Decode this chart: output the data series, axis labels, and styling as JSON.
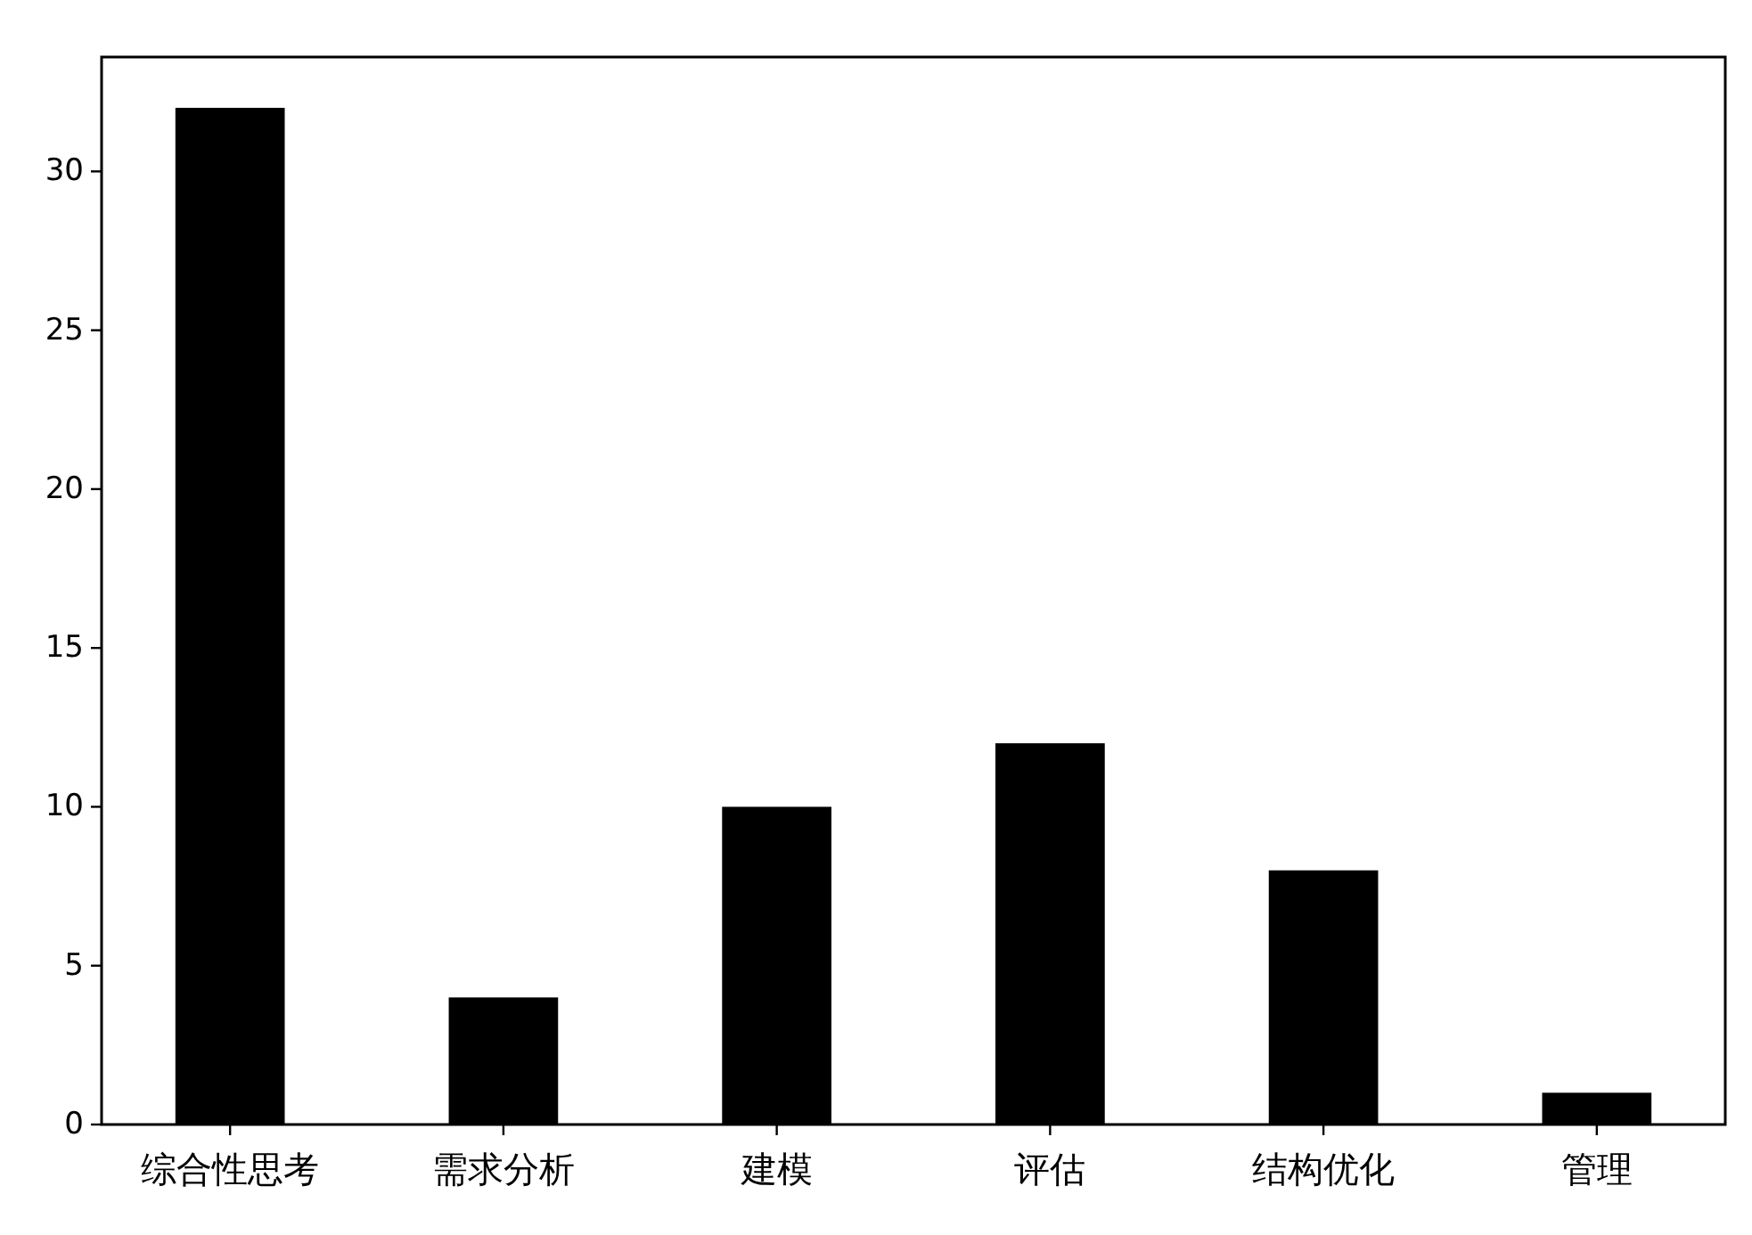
{
  "chart_data": {
    "type": "bar",
    "categories": [
      "综合性思考",
      "需求分析",
      "建模",
      "评估",
      "结构优化",
      "管理"
    ],
    "values": [
      32,
      4,
      10,
      12,
      8,
      1
    ],
    "color": "#000000",
    "ylim": [
      0,
      33.6
    ],
    "yticks": [
      0,
      5,
      10,
      15,
      20,
      25,
      30
    ]
  }
}
